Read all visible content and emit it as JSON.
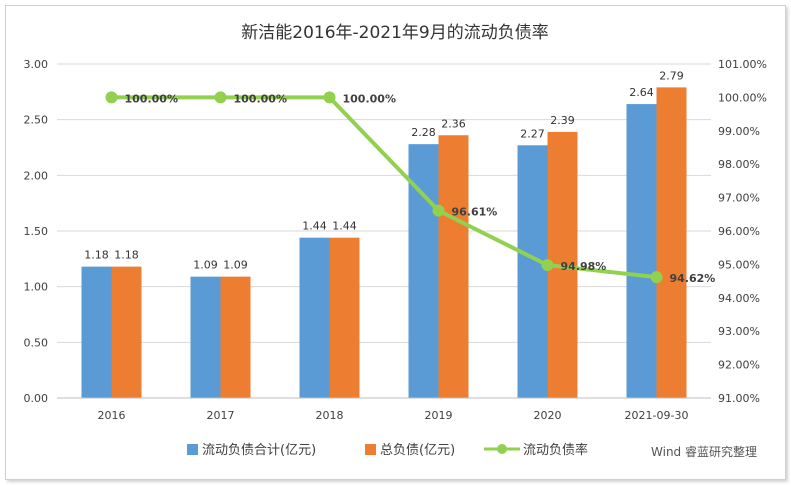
{
  "chart_data": {
    "type": "bar",
    "title": "新洁能2016年-2021年9月的流动负债率",
    "categories": [
      "2016",
      "2017",
      "2018",
      "2019",
      "2020",
      "2021-09-30"
    ],
    "series": [
      {
        "name": "流动负债合计(亿元)",
        "type": "bar",
        "axis": "left",
        "color": "#5b9bd5",
        "values": [
          1.18,
          1.09,
          1.44,
          2.28,
          2.27,
          2.64
        ],
        "labels": [
          "1.18",
          "1.09",
          "1.44",
          "2.28",
          "2.27",
          "2.64"
        ]
      },
      {
        "name": "总负债(亿元)",
        "type": "bar",
        "axis": "left",
        "color": "#ed7d31",
        "values": [
          1.18,
          1.09,
          1.44,
          2.36,
          2.39,
          2.79
        ],
        "labels": [
          "1.18",
          "1.09",
          "1.44",
          "2.36",
          "2.39",
          "2.79"
        ]
      },
      {
        "name": "流动负债率",
        "type": "line",
        "axis": "right",
        "color": "#92d050",
        "values": [
          100.0,
          100.0,
          100.0,
          96.61,
          94.98,
          94.62
        ],
        "labels": [
          "100.00%",
          "100.00%",
          "100.00%",
          "96.61%",
          "94.98%",
          "94.62%"
        ]
      }
    ],
    "y_left": {
      "min": 0,
      "max": 3,
      "ticks": [
        "0.00",
        "0.50",
        "1.00",
        "1.50",
        "2.00",
        "2.50",
        "3.00"
      ]
    },
    "y_right": {
      "min": 91,
      "max": 101,
      "ticks": [
        "91.00%",
        "92.00%",
        "93.00%",
        "94.00%",
        "95.00%",
        "96.00%",
        "97.00%",
        "98.00%",
        "99.00%",
        "100.00%",
        "101.00%"
      ]
    },
    "grid": true,
    "legend_position": "bottom",
    "source": "Wind 睿蓝研究整理"
  }
}
